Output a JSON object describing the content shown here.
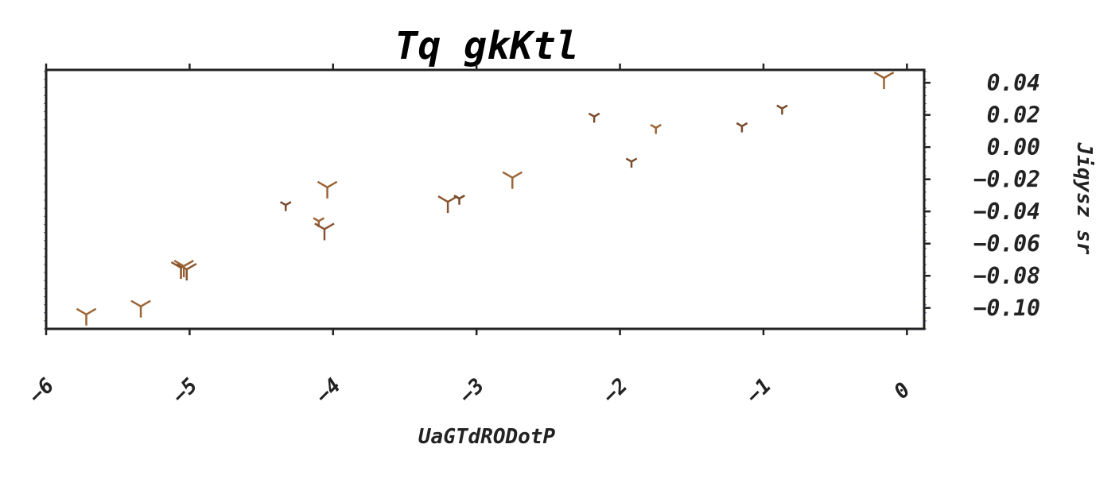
{
  "chart_data": {
    "type": "scatter",
    "title": "Tq gkKtl",
    "xlabel": "UaGTdRODotP",
    "ylabel": "Jiqysz sr",
    "xlim": [
      -6.0,
      0.12
    ],
    "ylim": [
      -0.113,
      0.048
    ],
    "xticks": [
      -6,
      -5,
      -4,
      -3,
      -2,
      -1,
      0
    ],
    "xtick_labels": [
      "−6",
      "−5",
      "−4",
      "−3",
      "−2",
      "−1",
      "0"
    ],
    "yticks": [
      0.04,
      0.02,
      0.0,
      -0.02,
      -0.04,
      -0.06,
      -0.08,
      -0.1
    ],
    "ytick_labels": [
      "0.04",
      "0.02",
      "0.00",
      "−0.02",
      "−0.04",
      "−0.06",
      "−0.08",
      "−0.10"
    ],
    "y_axis_side": "right",
    "grid": false,
    "marker": "tri_down",
    "colors": [
      "#9c6535",
      "#7a4a2a",
      "#b07a4a"
    ],
    "points": [
      {
        "x": -5.72,
        "y": -0.104,
        "size": 1.0,
        "color": "#9c6535"
      },
      {
        "x": -5.34,
        "y": -0.099,
        "size": 1.0,
        "color": "#9c6535"
      },
      {
        "x": -5.06,
        "y": -0.075,
        "size": 1.0,
        "color": "#8a5530"
      },
      {
        "x": -5.02,
        "y": -0.076,
        "size": 1.0,
        "color": "#8a5530"
      },
      {
        "x": -5.04,
        "y": -0.074,
        "size": 1.0,
        "color": "#9c6535"
      },
      {
        "x": -4.33,
        "y": -0.036,
        "size": 0.55,
        "color": "#7a4a2a"
      },
      {
        "x": -4.1,
        "y": -0.046,
        "size": 0.55,
        "color": "#9c6535"
      },
      {
        "x": -4.04,
        "y": -0.025,
        "size": 1.0,
        "color": "#9c6535"
      },
      {
        "x": -4.06,
        "y": -0.051,
        "size": 1.0,
        "color": "#8a5530"
      },
      {
        "x": -3.2,
        "y": -0.034,
        "size": 1.0,
        "color": "#8a5530"
      },
      {
        "x": -3.12,
        "y": -0.032,
        "size": 0.55,
        "color": "#7a4a2a"
      },
      {
        "x": -2.75,
        "y": -0.019,
        "size": 1.0,
        "color": "#9c6535"
      },
      {
        "x": -2.18,
        "y": 0.019,
        "size": 0.55,
        "color": "#7a4a2a"
      },
      {
        "x": -1.92,
        "y": -0.009,
        "size": 0.55,
        "color": "#7a4a2a"
      },
      {
        "x": -1.75,
        "y": 0.012,
        "size": 0.55,
        "color": "#9c6535"
      },
      {
        "x": -1.15,
        "y": 0.013,
        "size": 0.55,
        "color": "#7a4a2a"
      },
      {
        "x": -0.87,
        "y": 0.024,
        "size": 0.55,
        "color": "#7a4a2a"
      },
      {
        "x": -0.16,
        "y": 0.043,
        "size": 1.0,
        "color": "#9c6535"
      }
    ]
  }
}
